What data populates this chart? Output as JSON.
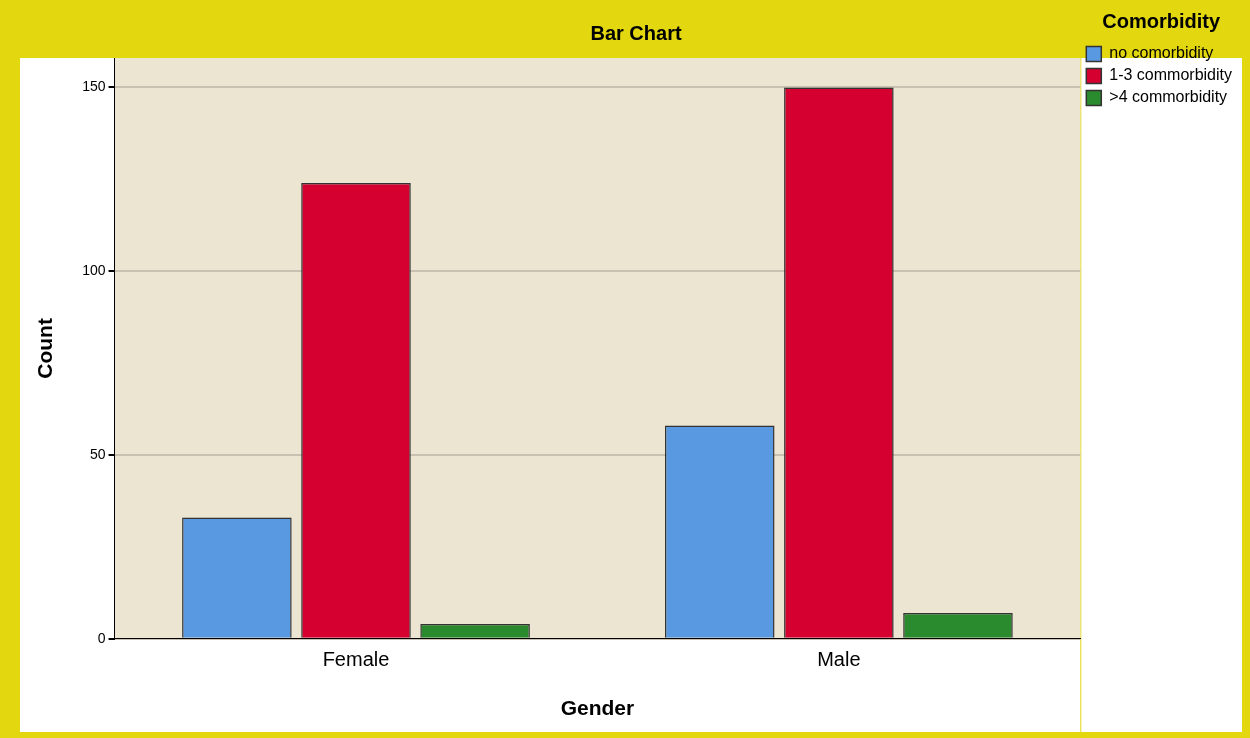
{
  "chart_data": {
    "type": "bar",
    "title": "Bar Chart",
    "xlabel": "Gender",
    "ylabel": "Count",
    "legend_title": "Comorbidity",
    "categories": [
      "Female",
      "Male"
    ],
    "series": [
      {
        "name": "no comorbidity",
        "color": "#5899e2",
        "values": [
          33,
          58
        ]
      },
      {
        "name": "1-3 commorbidity",
        "color": "#d5002f",
        "values": [
          124,
          150
        ]
      },
      {
        "name": ">4 commorbidity",
        "color": "#2a8a2e",
        "values": [
          4,
          7
        ]
      }
    ],
    "ylim": [
      0,
      158
    ],
    "yticks": [
      0,
      50,
      100,
      150
    ],
    "grid": "y",
    "legend": "top right"
  }
}
